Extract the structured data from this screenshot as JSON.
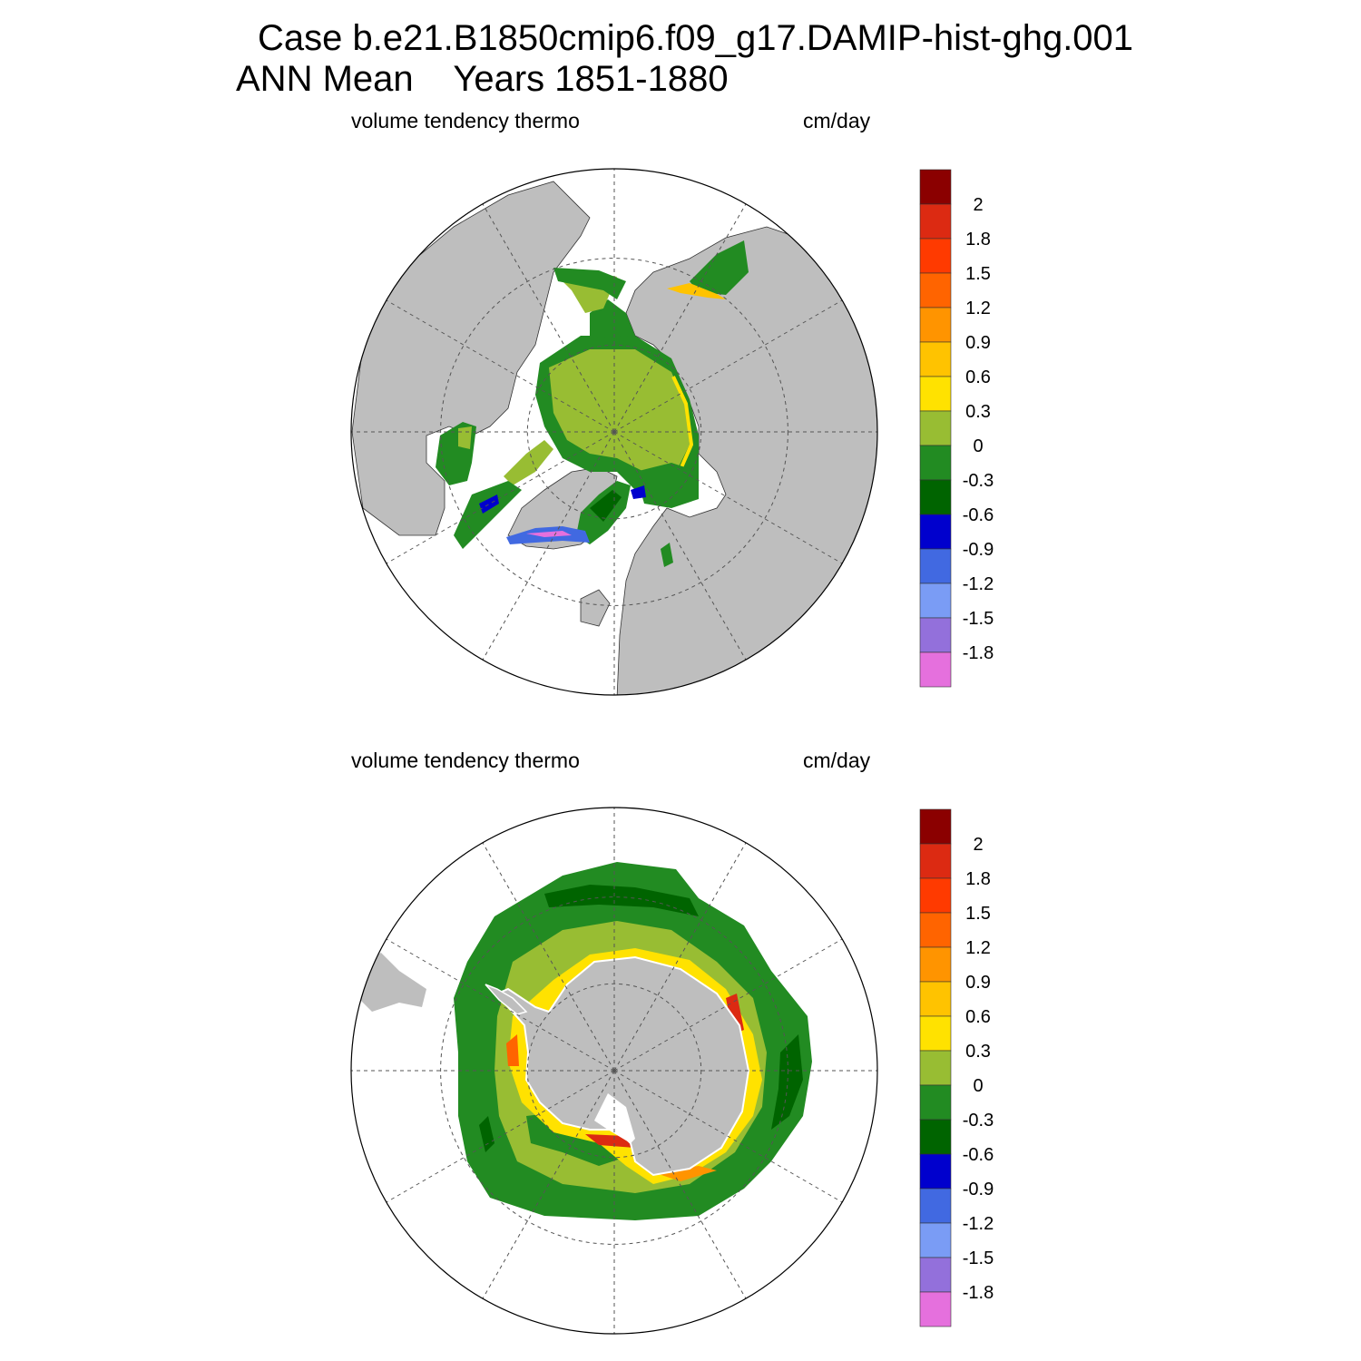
{
  "header": {
    "title_line1": "Case b.e21.B1850cmip6.f09_g17.DAMIP-hist-ghg.001",
    "title_line2": "ANN Mean    Years 1851-1880"
  },
  "panels": [
    {
      "id": "north",
      "hemisphere": "Northern",
      "variable_label": "volume tendency thermo",
      "units_label": "cm/day"
    },
    {
      "id": "south",
      "hemisphere": "Southern",
      "variable_label": "volume tendency thermo",
      "units_label": "cm/day"
    }
  ],
  "colorbar": {
    "labels": [
      "2",
      "1.8",
      "1.5",
      "1.2",
      "0.9",
      "0.6",
      "0.3",
      "0",
      "-0.3",
      "-0.6",
      "-0.9",
      "-1.2",
      "-1.5",
      "-1.8"
    ],
    "colors": [
      "#8b0000",
      "#dc2a12",
      "#ff3a00",
      "#ff6400",
      "#ff9400",
      "#ffc300",
      "#ffe200",
      "#98bd33",
      "#228b22",
      "#006400",
      "#0000cd",
      "#4169e1",
      "#7a9cf5",
      "#9370db",
      "#e570dd"
    ]
  },
  "colors": {
    "land": "#bebebe",
    "ocean_no_data": "#ffffff",
    "grid": "#555555"
  }
}
